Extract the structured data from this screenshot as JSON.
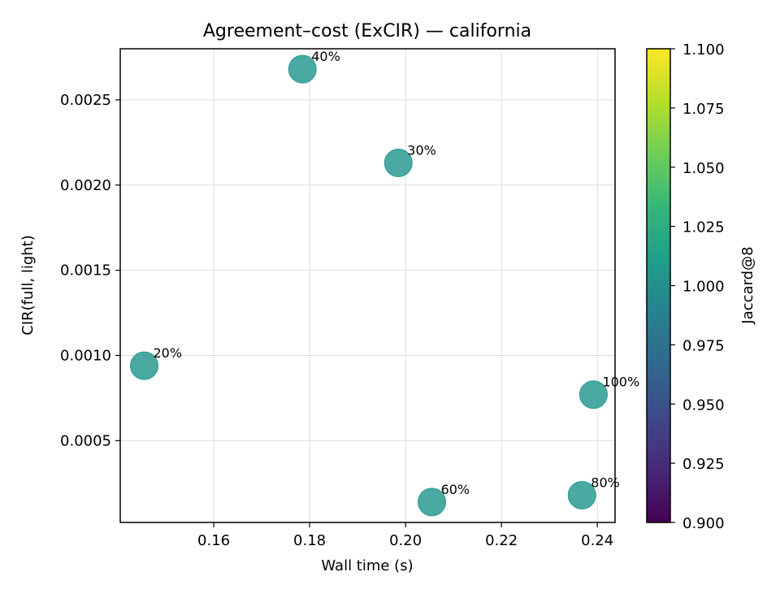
{
  "chart_data": {
    "type": "scatter",
    "title": "Agreement–cost (ExCIR) — california",
    "xlabel": "Wall time (s)",
    "ylabel": "CIR(full, light)",
    "xlim": [
      0.1405,
      0.2437
    ],
    "ylim": [
      2e-05,
      0.0028
    ],
    "x_ticks": [
      0.16,
      0.18,
      0.2,
      0.22,
      0.24
    ],
    "x_tick_labels": [
      "0.16",
      "0.18",
      "0.20",
      "0.22",
      "0.24"
    ],
    "y_ticks": [
      0.0005,
      0.001,
      0.0015,
      0.002,
      0.0025
    ],
    "y_tick_labels": [
      "0.0005",
      "0.0010",
      "0.0015",
      "0.0020",
      "0.0025"
    ],
    "grid": true,
    "points": [
      {
        "label": "20%",
        "x": 0.1455,
        "y": 0.00094,
        "jaccard": 1.0
      },
      {
        "label": "40%",
        "x": 0.1785,
        "y": 0.00268,
        "jaccard": 1.0
      },
      {
        "label": "30%",
        "x": 0.1985,
        "y": 0.00213,
        "jaccard": 1.0
      },
      {
        "label": "60%",
        "x": 0.2055,
        "y": 0.00014,
        "jaccard": 1.0
      },
      {
        "label": "80%",
        "x": 0.2368,
        "y": 0.00018,
        "jaccard": 1.0
      },
      {
        "label": "100%",
        "x": 0.2392,
        "y": 0.00077,
        "jaccard": 1.0
      }
    ],
    "point_color": "#2a9a90",
    "colorbar": {
      "label": "Jaccard@8",
      "range": [
        0.9,
        1.1
      ],
      "ticks": [
        0.9,
        0.925,
        0.95,
        0.975,
        1.0,
        1.025,
        1.05,
        1.075,
        1.1
      ],
      "tick_labels": [
        "0.900",
        "0.925",
        "0.950",
        "0.975",
        "1.000",
        "1.025",
        "1.050",
        "1.075",
        "1.100"
      ],
      "colormap": [
        "#440154",
        "#482878",
        "#3e4989",
        "#31688e",
        "#26828e",
        "#1f9e89",
        "#35b779",
        "#6ece58",
        "#b5de2b",
        "#fde725"
      ]
    }
  }
}
